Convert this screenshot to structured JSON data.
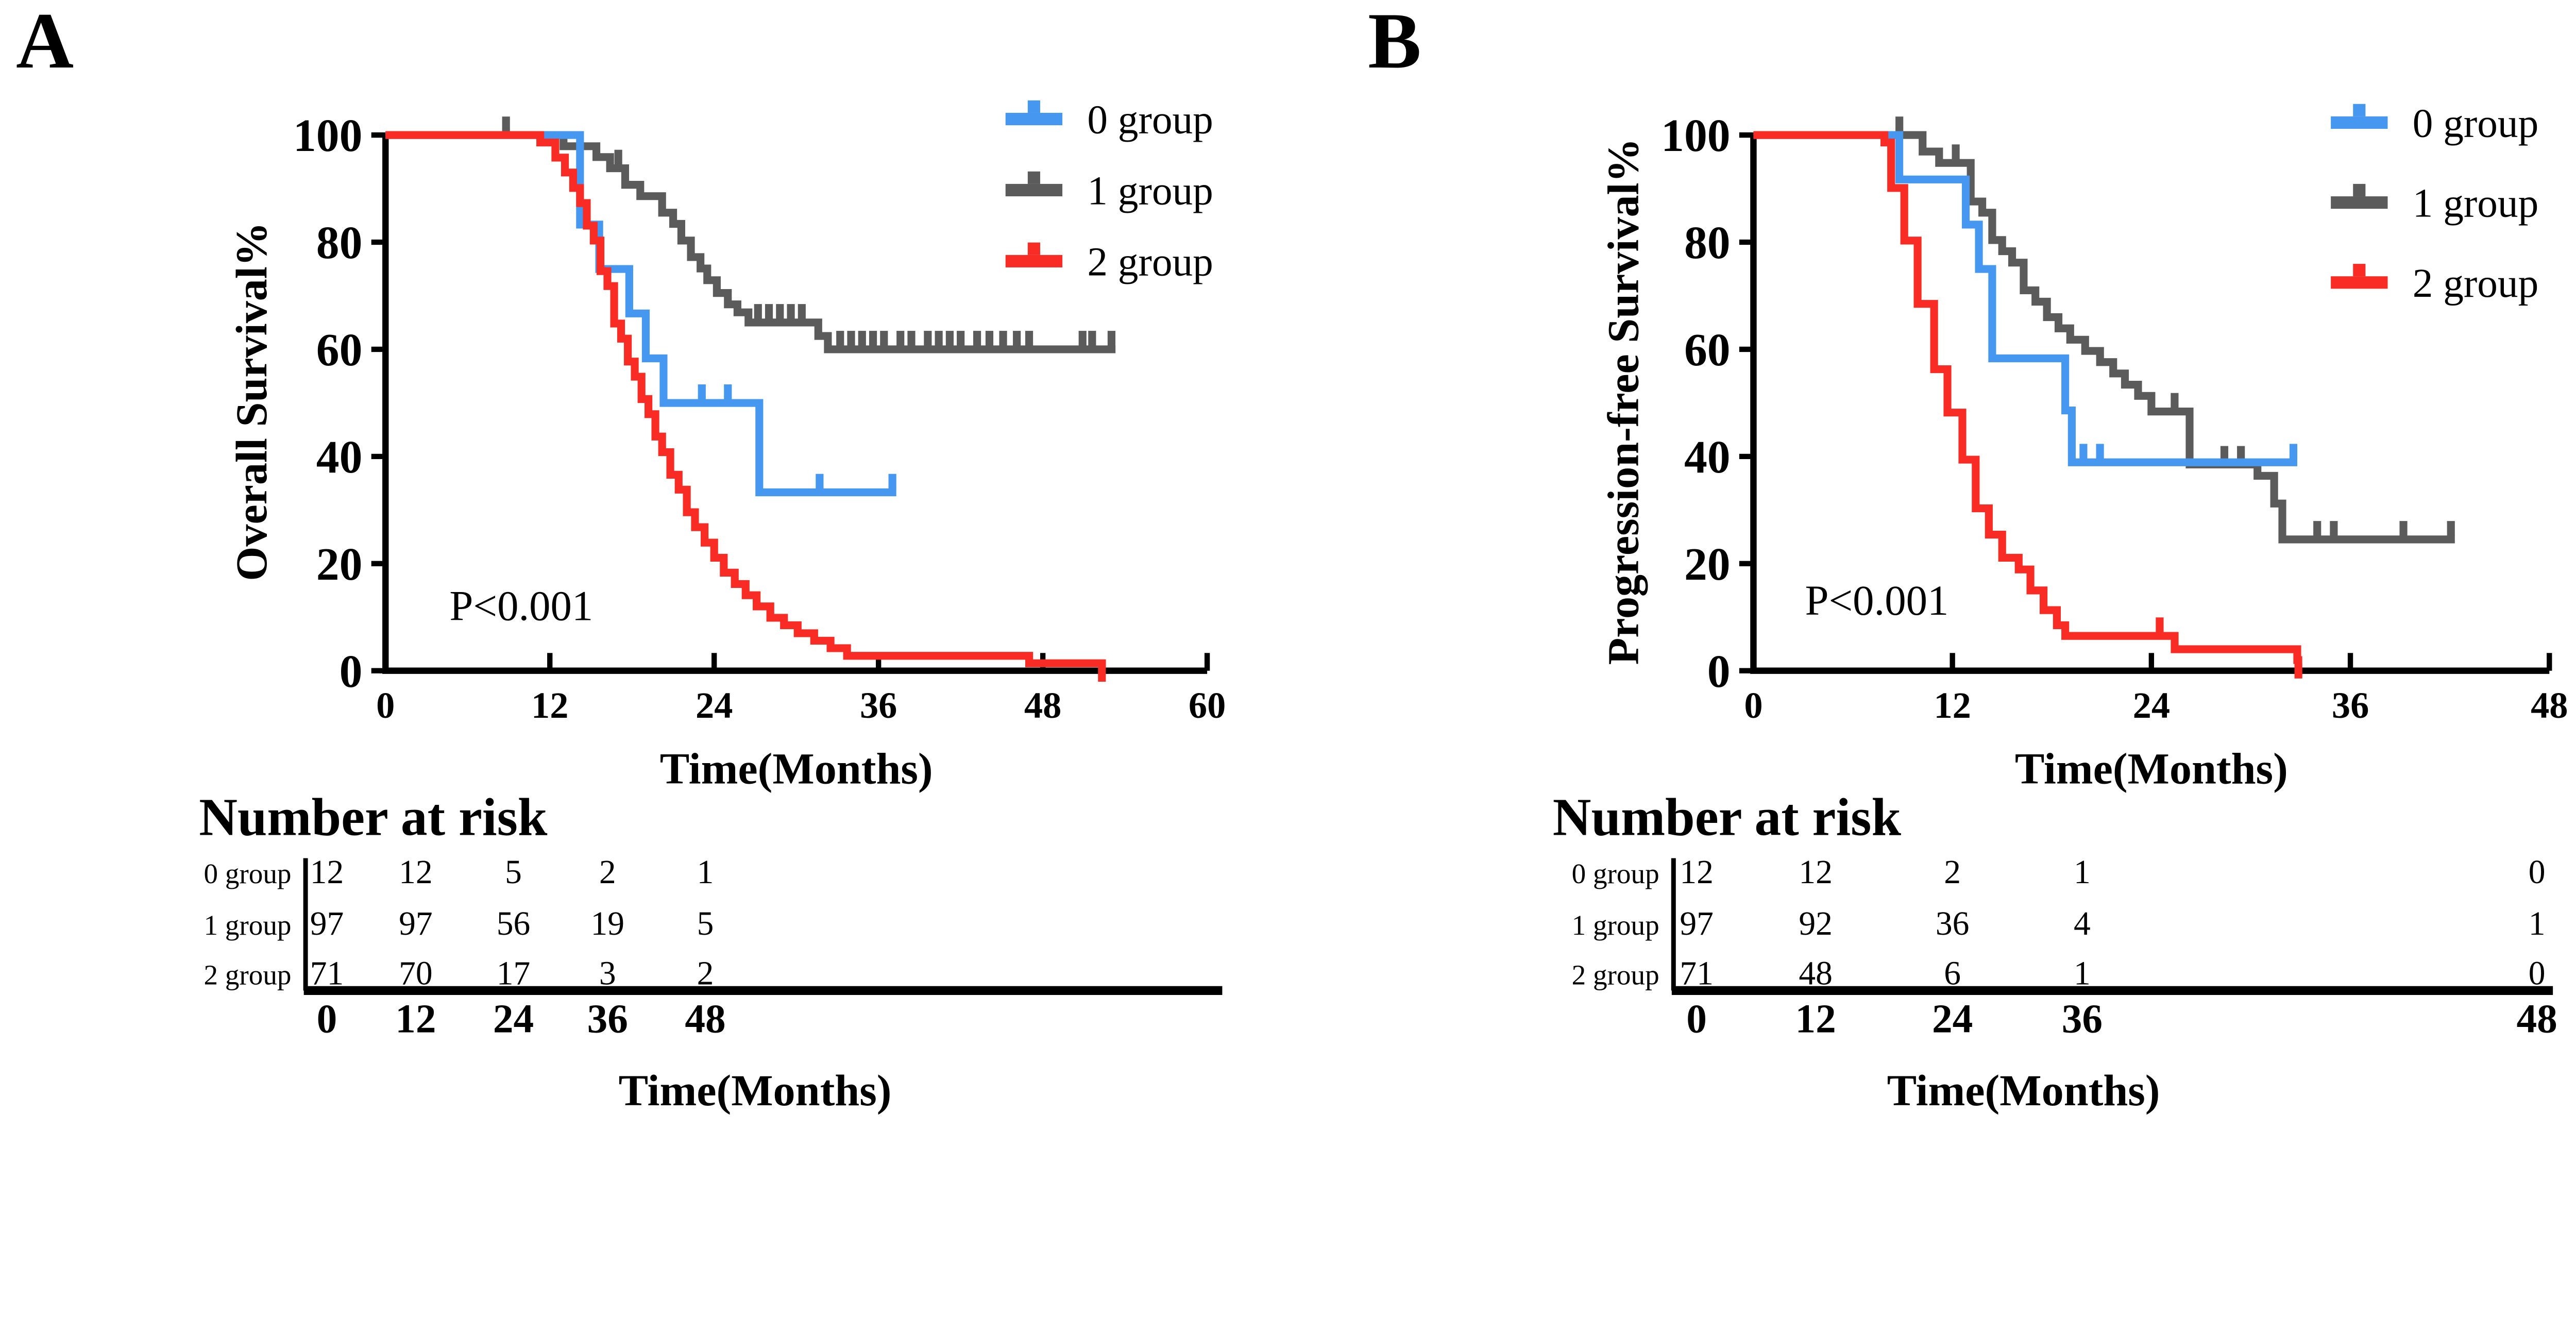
{
  "figure_title": "Kaplan-Meier survival curves by group",
  "chart_data": [
    {
      "id": "A",
      "panel_label": "A",
      "type": "km_step",
      "ylabel": "Overall Survival%",
      "xlabel": "Time(Months)",
      "annotation": "P<0.001",
      "xlim": [
        0,
        60
      ],
      "ylim": [
        0,
        100
      ],
      "xticks": [
        0,
        12,
        24,
        36,
        48,
        60
      ],
      "yticks": [
        0,
        20,
        40,
        60,
        80,
        100
      ],
      "legend_position": "top-right",
      "legend": [
        {
          "label": "0 group",
          "color": "#4697F0"
        },
        {
          "label": "1 group",
          "color": "#5B5B5B"
        },
        {
          "label": "2 group",
          "color": "#F92C25"
        }
      ],
      "series": [
        {
          "name": "1 group",
          "color": "#5B5B5B",
          "end_marker": "up",
          "steps": [
            [
              0,
              100
            ],
            [
              13,
              100
            ],
            [
              13,
              97.9
            ],
            [
              15.4,
              97.9
            ],
            [
              15.4,
              95.9
            ],
            [
              16.4,
              95.9
            ],
            [
              16.4,
              93.8
            ],
            [
              17.5,
              93.8
            ],
            [
              17.5,
              90.7
            ],
            [
              18.6,
              90.7
            ],
            [
              18.6,
              88.6
            ],
            [
              20.2,
              88.6
            ],
            [
              20.2,
              85.5
            ],
            [
              21,
              85.5
            ],
            [
              21,
              83.4
            ],
            [
              21.6,
              83.4
            ],
            [
              21.6,
              80.3
            ],
            [
              22.3,
              80.3
            ],
            [
              22.3,
              77.2
            ],
            [
              23,
              77.2
            ],
            [
              23,
              75.1
            ],
            [
              23.5,
              75.1
            ],
            [
              23.5,
              72.9
            ],
            [
              24.2,
              72.9
            ],
            [
              24.2,
              70.5
            ],
            [
              25,
              70.5
            ],
            [
              25,
              68.4
            ],
            [
              25.7,
              68.4
            ],
            [
              25.7,
              66.9
            ],
            [
              26.5,
              66.9
            ],
            [
              26.5,
              65
            ],
            [
              31.6,
              65
            ],
            [
              31.6,
              62.5
            ],
            [
              32.3,
              62.5
            ],
            [
              32.3,
              60
            ],
            [
              53.3,
              60
            ]
          ],
          "censors": [
            8.8,
            17,
            27.2,
            28,
            28.8,
            29.6,
            30.4,
            33.2,
            34,
            34.8,
            35.6,
            36.4,
            37.6,
            38.4,
            39.6,
            40.4,
            41.2,
            42,
            43.2,
            44.1,
            45.1,
            46.1,
            47,
            50.9,
            51.6
          ]
        },
        {
          "name": "0 group",
          "color": "#4697F0",
          "end_marker": "up",
          "steps": [
            [
              0,
              100
            ],
            [
              14.2,
              100
            ],
            [
              14.2,
              83.3
            ],
            [
              15.6,
              83.3
            ],
            [
              15.6,
              75
            ],
            [
              17.8,
              75
            ],
            [
              17.8,
              66.7
            ],
            [
              19,
              66.7
            ],
            [
              19,
              58.3
            ],
            [
              20.3,
              58.3
            ],
            [
              20.3,
              50
            ],
            [
              27.3,
              50
            ],
            [
              27.3,
              33.3
            ],
            [
              37.3,
              33.3
            ]
          ],
          "censors": [
            23.1,
            25,
            31.7
          ]
        },
        {
          "name": "2 group",
          "color": "#F92C25",
          "end_marker": "down",
          "steps": [
            [
              0,
              100
            ],
            [
              11.3,
              100
            ],
            [
              11.3,
              98.6
            ],
            [
              12.4,
              98.6
            ],
            [
              12.4,
              95.8
            ],
            [
              13.1,
              95.8
            ],
            [
              13.1,
              93
            ],
            [
              13.7,
              93
            ],
            [
              13.7,
              90.1
            ],
            [
              14.2,
              90.1
            ],
            [
              14.2,
              87.3
            ],
            [
              14.7,
              87.3
            ],
            [
              14.7,
              83.1
            ],
            [
              15.2,
              83.1
            ],
            [
              15.2,
              80.3
            ],
            [
              15.7,
              80.3
            ],
            [
              15.7,
              74.6
            ],
            [
              16.2,
              74.6
            ],
            [
              16.2,
              71.8
            ],
            [
              16.7,
              71.8
            ],
            [
              16.7,
              64.8
            ],
            [
              17.2,
              64.8
            ],
            [
              17.2,
              62
            ],
            [
              17.7,
              62
            ],
            [
              17.7,
              57.7
            ],
            [
              18.2,
              57.7
            ],
            [
              18.2,
              54.9
            ],
            [
              18.7,
              54.9
            ],
            [
              18.7,
              50.7
            ],
            [
              19.2,
              50.7
            ],
            [
              19.2,
              47.9
            ],
            [
              19.7,
              47.9
            ],
            [
              19.7,
              43.7
            ],
            [
              20.2,
              43.7
            ],
            [
              20.2,
              40.8
            ],
            [
              20.8,
              40.8
            ],
            [
              20.8,
              36.6
            ],
            [
              21.4,
              36.6
            ],
            [
              21.4,
              33.8
            ],
            [
              22,
              33.8
            ],
            [
              22,
              29.6
            ],
            [
              22.6,
              29.6
            ],
            [
              22.6,
              26.8
            ],
            [
              23.3,
              26.8
            ],
            [
              23.3,
              23.9
            ],
            [
              24,
              23.9
            ],
            [
              24,
              21.1
            ],
            [
              24.7,
              21.1
            ],
            [
              24.7,
              18.3
            ],
            [
              25.5,
              18.3
            ],
            [
              25.5,
              16.2
            ],
            [
              26.3,
              16.2
            ],
            [
              26.3,
              14.1
            ],
            [
              27.1,
              14.1
            ],
            [
              27.1,
              12
            ],
            [
              28.1,
              12
            ],
            [
              28.1,
              9.9
            ],
            [
              29.1,
              9.9
            ],
            [
              29.1,
              8.5
            ],
            [
              30.1,
              8.5
            ],
            [
              30.1,
              7
            ],
            [
              31.3,
              7
            ],
            [
              31.3,
              5.6
            ],
            [
              32.5,
              5.6
            ],
            [
              32.5,
              4.2
            ],
            [
              33.7,
              4.2
            ],
            [
              33.7,
              2.8
            ],
            [
              47,
              2.8
            ],
            [
              47,
              1.4
            ],
            [
              52.6,
              1.4
            ]
          ],
          "censors": []
        }
      ],
      "risk_table": {
        "title": "Number at risk",
        "times": [
          "0",
          "12",
          "24",
          "36",
          "48"
        ],
        "xlabel": "Time(Months)",
        "rows": [
          {
            "label": "0 group",
            "values": [
              "12",
              "12",
              "5",
              "2",
              "1"
            ]
          },
          {
            "label": "1 group",
            "values": [
              "97",
              "97",
              "56",
              "19",
              "5"
            ]
          },
          {
            "label": "2 group",
            "values": [
              "71",
              "70",
              "17",
              "3",
              "2"
            ]
          }
        ]
      }
    },
    {
      "id": "B",
      "panel_label": "B",
      "type": "km_step",
      "ylabel": "Progression-free Survival%",
      "xlabel": "Time(Months)",
      "annotation": "P<0.001",
      "xlim": [
        0,
        48
      ],
      "ylim": [
        0,
        100
      ],
      "xticks": [
        0,
        12,
        24,
        36,
        48
      ],
      "yticks": [
        0,
        20,
        40,
        60,
        80,
        100
      ],
      "legend_position": "top-right",
      "legend": [
        {
          "label": "0 group",
          "color": "#4697F0"
        },
        {
          "label": "1 group",
          "color": "#5B5B5B"
        },
        {
          "label": "2 group",
          "color": "#F92C25"
        }
      ],
      "series": [
        {
          "name": "1 group",
          "color": "#5B5B5B",
          "end_marker": "up",
          "steps": [
            [
              0,
              100
            ],
            [
              10.2,
              100
            ],
            [
              10.2,
              96.9
            ],
            [
              11.2,
              96.9
            ],
            [
              11.2,
              94.8
            ],
            [
              13.1,
              94.8
            ],
            [
              13.1,
              87.6
            ],
            [
              13.8,
              87.6
            ],
            [
              13.8,
              85.5
            ],
            [
              14.4,
              85.5
            ],
            [
              14.4,
              80.4
            ],
            [
              15,
              80.4
            ],
            [
              15,
              78.3
            ],
            [
              15.6,
              78.3
            ],
            [
              15.6,
              76.2
            ],
            [
              16.3,
              76.2
            ],
            [
              16.3,
              71
            ],
            [
              17,
              71
            ],
            [
              17,
              68.9
            ],
            [
              17.7,
              68.9
            ],
            [
              17.7,
              66
            ],
            [
              18.4,
              66
            ],
            [
              18.4,
              63.9
            ],
            [
              19.1,
              63.9
            ],
            [
              19.1,
              61.8
            ],
            [
              20,
              61.8
            ],
            [
              20,
              59.7
            ],
            [
              20.9,
              59.7
            ],
            [
              20.9,
              57.6
            ],
            [
              21.7,
              57.6
            ],
            [
              21.7,
              55.5
            ],
            [
              22.4,
              55.5
            ],
            [
              22.4,
              53.4
            ],
            [
              23.2,
              53.4
            ],
            [
              23.2,
              51.3
            ],
            [
              24,
              51.3
            ],
            [
              24,
              48.4
            ],
            [
              26.3,
              48.4
            ],
            [
              26.3,
              38.5
            ],
            [
              30.4,
              38.5
            ],
            [
              30.4,
              36.4
            ],
            [
              31.4,
              36.4
            ],
            [
              31.4,
              31.2
            ],
            [
              31.9,
              31.2
            ],
            [
              31.9,
              24.5
            ],
            [
              42.3,
              24.5
            ]
          ],
          "censors": [
            8.8,
            12.2,
            25.4,
            28.4,
            29.4,
            34,
            35,
            39.2
          ]
        },
        {
          "name": "0 group",
          "color": "#4697F0",
          "end_marker": "up",
          "steps": [
            [
              0,
              100
            ],
            [
              8.8,
              100
            ],
            [
              8.8,
              91.7
            ],
            [
              12.8,
              91.7
            ],
            [
              12.8,
              83.3
            ],
            [
              13.6,
              83.3
            ],
            [
              13.6,
              75
            ],
            [
              14.4,
              75
            ],
            [
              14.4,
              58.3
            ],
            [
              18.8,
              58.3
            ],
            [
              18.8,
              48.6
            ],
            [
              19.2,
              48.6
            ],
            [
              19.2,
              38.9
            ],
            [
              32.8,
              38.9
            ]
          ],
          "censors": [
            19.9,
            20.9
          ]
        },
        {
          "name": "2 group",
          "color": "#F92C25",
          "end_marker": "down",
          "steps": [
            [
              0,
              100
            ],
            [
              7.9,
              100
            ],
            [
              7.9,
              98.6
            ],
            [
              8.3,
              98.6
            ],
            [
              8.3,
              90.1
            ],
            [
              9.1,
              90.1
            ],
            [
              9.1,
              80.3
            ],
            [
              9.9,
              80.3
            ],
            [
              9.9,
              68.5
            ],
            [
              10.9,
              68.5
            ],
            [
              10.9,
              56.3
            ],
            [
              11.7,
              56.3
            ],
            [
              11.7,
              48.2
            ],
            [
              12.6,
              48.2
            ],
            [
              12.6,
              39.4
            ],
            [
              13.4,
              39.4
            ],
            [
              13.4,
              30.3
            ],
            [
              14.2,
              30.3
            ],
            [
              14.2,
              25.4
            ],
            [
              15,
              25.4
            ],
            [
              15,
              21.1
            ],
            [
              16,
              21.1
            ],
            [
              16,
              18.9
            ],
            [
              16.7,
              18.9
            ],
            [
              16.7,
              15
            ],
            [
              17.5,
              15
            ],
            [
              17.5,
              11.3
            ],
            [
              18.3,
              11.3
            ],
            [
              18.3,
              8.5
            ],
            [
              18.8,
              8.5
            ],
            [
              18.8,
              6.5
            ],
            [
              25.4,
              6.5
            ],
            [
              25.4,
              4
            ],
            [
              32.8,
              4
            ],
            [
              32.8,
              2
            ],
            [
              33.1,
              2
            ]
          ],
          "censors": [
            24.5
          ]
        }
      ],
      "risk_table": {
        "title": "Number at risk",
        "times": [
          "0",
          "12",
          "24",
          "36",
          "48"
        ],
        "xlabel": "Time(Months)",
        "rows": [
          {
            "label": "0 group",
            "values": [
              "12",
              "12",
              "2",
              "1",
              "0"
            ]
          },
          {
            "label": "1 group",
            "values": [
              "97",
              "92",
              "36",
              "4",
              "1"
            ]
          },
          {
            "label": "2 group",
            "values": [
              "71",
              "48",
              "6",
              "1",
              "0"
            ]
          }
        ]
      }
    }
  ]
}
